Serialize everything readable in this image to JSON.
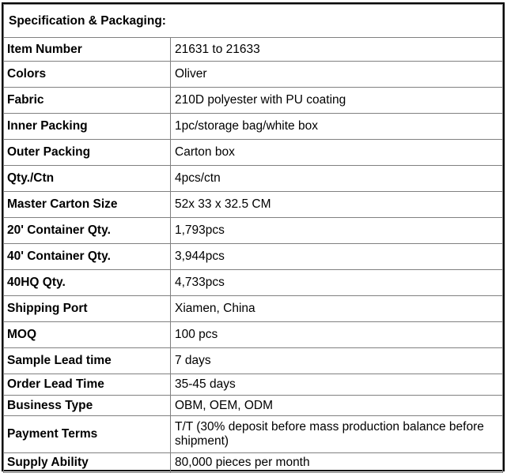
{
  "title": "Specification & Packaging:",
  "rows": [
    {
      "label": "Item Number",
      "value": "21631 to 21633"
    },
    {
      "label": "Colors",
      "value": "Oliver"
    },
    {
      "label": "Fabric",
      "value": "210D polyester with PU coating"
    },
    {
      "label": "Inner Packing",
      "value": "1pc/storage bag/white box"
    },
    {
      "label": "Outer Packing",
      "value": "Carton box"
    },
    {
      "label": "Qty./Ctn",
      "value": "4pcs/ctn"
    },
    {
      "label": "Master Carton Size",
      "value": "52x 33 x 32.5 CM"
    },
    {
      "label": "20' Container Qty.",
      "value": "1,793pcs"
    },
    {
      "label": "40' Container Qty.",
      "value": "3,944pcs"
    },
    {
      "label": "40HQ Qty.",
      "value": "4,733pcs"
    },
    {
      "label": "Shipping Port",
      "value": "Xiamen, China"
    },
    {
      "label": "MOQ",
      "value": "100 pcs"
    },
    {
      "label": "Sample Lead time",
      "value": "7 days"
    },
    {
      "label": "Order Lead Time",
      "value": "35-45 days"
    },
    {
      "label": "Business Type",
      "value": "OBM, OEM, ODM"
    },
    {
      "label": "Payment Terms",
      "value": "T/T (30% deposit before mass production balance before shipment)"
    },
    {
      "label": "Supply Ability",
      "value": "80,000 pieces per month"
    }
  ]
}
